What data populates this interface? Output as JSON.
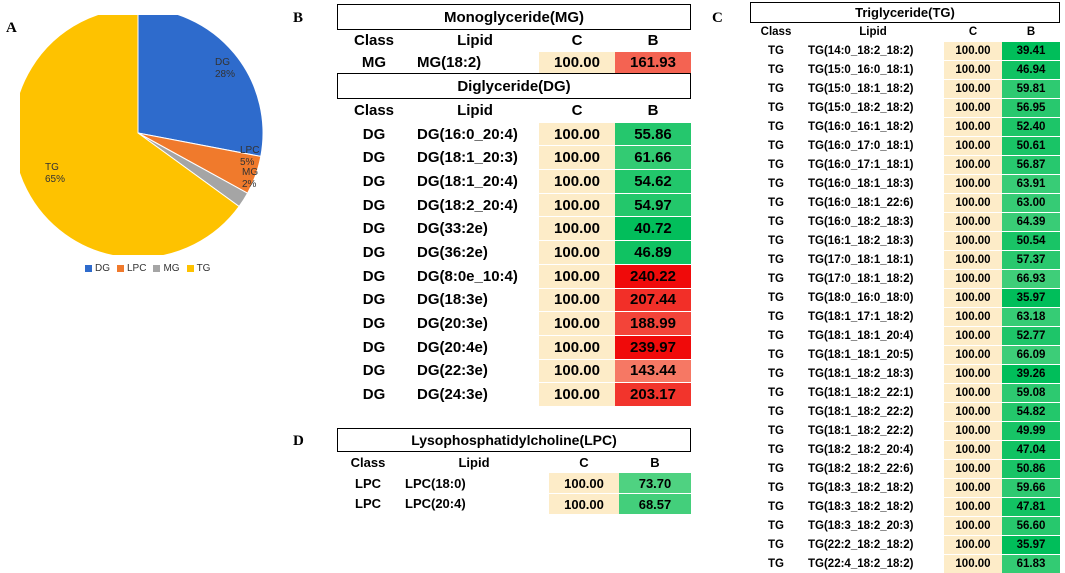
{
  "panels": {
    "a": "A",
    "b": "B",
    "c": "C",
    "d": "D"
  },
  "pie": {
    "slices": [
      {
        "name": "DG",
        "percent": "28%",
        "value": 28,
        "color": "#2e6bcc"
      },
      {
        "name": "LPC",
        "percent": "5%",
        "value": 5,
        "color": "#f07a2c"
      },
      {
        "name": "MG",
        "percent": "2%",
        "value": 2,
        "color": "#a5a5a5"
      },
      {
        "name": "TG",
        "percent": "65%",
        "value": 65,
        "color": "#fec200"
      }
    ],
    "legend": [
      "DG",
      "LPC",
      "MG",
      "TG"
    ]
  },
  "mg": {
    "title": "Monoglyceride(MG)",
    "headers": [
      "Class",
      "Lipid",
      "C",
      "B"
    ],
    "rows": [
      {
        "cls": "MG",
        "lipid": "MG(18:2)",
        "c": "100.00",
        "b": "161.93",
        "bv": 161.93
      }
    ]
  },
  "dg": {
    "title": "Diglyceride(DG)",
    "headers": [
      "Class",
      "Lipid",
      "C",
      "B"
    ],
    "rows": [
      {
        "cls": "DG",
        "lipid": "DG(16:0_20:4)",
        "c": "100.00",
        "b": "55.86",
        "bv": 55.86
      },
      {
        "cls": "DG",
        "lipid": "DG(18:1_20:3)",
        "c": "100.00",
        "b": "61.66",
        "bv": 61.66
      },
      {
        "cls": "DG",
        "lipid": "DG(18:1_20:4)",
        "c": "100.00",
        "b": "54.62",
        "bv": 54.62
      },
      {
        "cls": "DG",
        "lipid": "DG(18:2_20:4)",
        "c": "100.00",
        "b": "54.97",
        "bv": 54.97
      },
      {
        "cls": "DG",
        "lipid": "DG(33:2e)",
        "c": "100.00",
        "b": "40.72",
        "bv": 40.72
      },
      {
        "cls": "DG",
        "lipid": "DG(36:2e)",
        "c": "100.00",
        "b": "46.89",
        "bv": 46.89
      },
      {
        "cls": "DG",
        "lipid": "DG(8:0e_10:4)",
        "c": "100.00",
        "b": "240.22",
        "bv": 240.22
      },
      {
        "cls": "DG",
        "lipid": "DG(18:3e)",
        "c": "100.00",
        "b": "207.44",
        "bv": 207.44
      },
      {
        "cls": "DG",
        "lipid": "DG(20:3e)",
        "c": "100.00",
        "b": "188.99",
        "bv": 188.99
      },
      {
        "cls": "DG",
        "lipid": "DG(20:4e)",
        "c": "100.00",
        "b": "239.97",
        "bv": 239.97
      },
      {
        "cls": "DG",
        "lipid": "DG(22:3e)",
        "c": "100.00",
        "b": "143.44",
        "bv": 143.44
      },
      {
        "cls": "DG",
        "lipid": "DG(24:3e)",
        "c": "100.00",
        "b": "203.17",
        "bv": 203.17
      }
    ]
  },
  "lpc": {
    "title": "Lysophosphatidylcholine(LPC)",
    "headers": [
      "Class",
      "Lipid",
      "C",
      "B"
    ],
    "rows": [
      {
        "cls": "LPC",
        "lipid": "LPC(18:0)",
        "c": "100.00",
        "b": "73.70",
        "bv": 73.7
      },
      {
        "cls": "LPC",
        "lipid": "LPC(20:4)",
        "c": "100.00",
        "b": "68.57",
        "bv": 68.57
      }
    ]
  },
  "tg": {
    "title": "Triglyceride(TG)",
    "headers": [
      "Class",
      "Lipid",
      "C",
      "B"
    ],
    "rows": [
      {
        "cls": "TG",
        "lipid": "TG(14:0_18:2_18:2)",
        "c": "100.00",
        "b": "39.41",
        "bv": 39.41
      },
      {
        "cls": "TG",
        "lipid": "TG(15:0_16:0_18:1)",
        "c": "100.00",
        "b": "46.94",
        "bv": 46.94
      },
      {
        "cls": "TG",
        "lipid": "TG(15:0_18:1_18:2)",
        "c": "100.00",
        "b": "59.81",
        "bv": 59.81
      },
      {
        "cls": "TG",
        "lipid": "TG(15:0_18:2_18:2)",
        "c": "100.00",
        "b": "56.95",
        "bv": 56.95
      },
      {
        "cls": "TG",
        "lipid": "TG(16:0_16:1_18:2)",
        "c": "100.00",
        "b": "52.40",
        "bv": 52.4
      },
      {
        "cls": "TG",
        "lipid": "TG(16:0_17:0_18:1)",
        "c": "100.00",
        "b": "50.61",
        "bv": 50.61
      },
      {
        "cls": "TG",
        "lipid": "TG(16:0_17:1_18:1)",
        "c": "100.00",
        "b": "56.87",
        "bv": 56.87
      },
      {
        "cls": "TG",
        "lipid": "TG(16:0_18:1_18:3)",
        "c": "100.00",
        "b": "63.91",
        "bv": 63.91
      },
      {
        "cls": "TG",
        "lipid": "TG(16:0_18:1_22:6)",
        "c": "100.00",
        "b": "63.00",
        "bv": 63.0
      },
      {
        "cls": "TG",
        "lipid": "TG(16:0_18:2_18:3)",
        "c": "100.00",
        "b": "64.39",
        "bv": 64.39
      },
      {
        "cls": "TG",
        "lipid": "TG(16:1_18:2_18:3)",
        "c": "100.00",
        "b": "50.54",
        "bv": 50.54
      },
      {
        "cls": "TG",
        "lipid": "TG(17:0_18:1_18:1)",
        "c": "100.00",
        "b": "57.37",
        "bv": 57.37
      },
      {
        "cls": "TG",
        "lipid": "TG(17:0_18:1_18:2)",
        "c": "100.00",
        "b": "66.93",
        "bv": 66.93
      },
      {
        "cls": "TG",
        "lipid": "TG(18:0_16:0_18:0)",
        "c": "100.00",
        "b": "35.97",
        "bv": 35.97
      },
      {
        "cls": "TG",
        "lipid": "TG(18:1_17:1_18:2)",
        "c": "100.00",
        "b": "63.18",
        "bv": 63.18
      },
      {
        "cls": "TG",
        "lipid": "TG(18:1_18:1_20:4)",
        "c": "100.00",
        "b": "52.77",
        "bv": 52.77
      },
      {
        "cls": "TG",
        "lipid": "TG(18:1_18:1_20:5)",
        "c": "100.00",
        "b": "66.09",
        "bv": 66.09
      },
      {
        "cls": "TG",
        "lipid": "TG(18:1_18:2_18:3)",
        "c": "100.00",
        "b": "39.26",
        "bv": 39.26
      },
      {
        "cls": "TG",
        "lipid": "TG(18:1_18:2_22:1)",
        "c": "100.00",
        "b": "59.08",
        "bv": 59.08
      },
      {
        "cls": "TG",
        "lipid": "TG(18:1_18:2_22:2)",
        "c": "100.00",
        "b": "54.82",
        "bv": 54.82
      },
      {
        "cls": "TG",
        "lipid": "TG(18:1_18:2_22:2)",
        "c": "100.00",
        "b": "49.99",
        "bv": 49.99
      },
      {
        "cls": "TG",
        "lipid": "TG(18:2_18:2_20:4)",
        "c": "100.00",
        "b": "47.04",
        "bv": 47.04
      },
      {
        "cls": "TG",
        "lipid": "TG(18:2_18:2_22:6)",
        "c": "100.00",
        "b": "50.86",
        "bv": 50.86
      },
      {
        "cls": "TG",
        "lipid": "TG(18:3_18:2_18:2)",
        "c": "100.00",
        "b": "59.66",
        "bv": 59.66
      },
      {
        "cls": "TG",
        "lipid": "TG(18:3_18:2_18:2)",
        "c": "100.00",
        "b": "47.81",
        "bv": 47.81
      },
      {
        "cls": "TG",
        "lipid": "TG(18:3_18:2_20:3)",
        "c": "100.00",
        "b": "56.60",
        "bv": 56.6
      },
      {
        "cls": "TG",
        "lipid": "TG(22:2_18:2_18:2)",
        "c": "100.00",
        "b": "35.97",
        "bv": 35.97
      },
      {
        "cls": "TG",
        "lipid": "TG(22:4_18:2_18:2)",
        "c": "100.00",
        "b": "61.83",
        "bv": 61.83
      }
    ]
  },
  "chart_data": [
    {
      "type": "pie",
      "categories": [
        "DG",
        "LPC",
        "MG",
        "TG"
      ],
      "values": [
        28,
        5,
        2,
        65
      ],
      "labels": [
        "28%",
        "5%",
        "2%",
        "65%"
      ],
      "legend_position": "bottom"
    },
    {
      "type": "table",
      "title": "Monoglyceride(MG)",
      "columns": [
        "Class",
        "Lipid",
        "C",
        "B"
      ]
    },
    {
      "type": "table",
      "title": "Diglyceride(DG)",
      "columns": [
        "Class",
        "Lipid",
        "C",
        "B"
      ]
    },
    {
      "type": "table",
      "title": "Triglyceride(TG)",
      "columns": [
        "Class",
        "Lipid",
        "C",
        "B"
      ]
    },
    {
      "type": "table",
      "title": "Lysophosphatidylcholine(LPC)",
      "columns": [
        "Class",
        "Lipid",
        "C",
        "B"
      ]
    }
  ]
}
